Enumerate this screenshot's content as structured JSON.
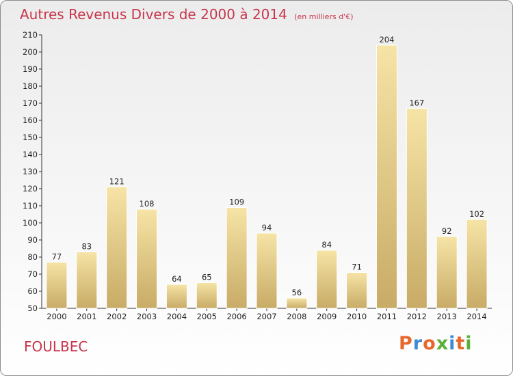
{
  "header": {
    "title": "Autres Revenus Divers de 2000 à 2014",
    "subtitle": "(en milliers d'€)"
  },
  "footer": {
    "place": "FOULBEC",
    "logo": "Proxiti"
  },
  "colors": {
    "title": "#c8344b",
    "bar_light": "#f4dfa0",
    "bar_dark": "#c9ac67",
    "logo_letters": [
      "#e8672a",
      "#3d8ad1",
      "#e8672a",
      "#58b038",
      "#3d8ad1",
      "#e8672a",
      "#58b038"
    ]
  },
  "chart_data": {
    "type": "bar",
    "title": "Autres Revenus Divers de 2000 à 2014",
    "subtitle": "(en milliers d'€)",
    "categories": [
      "2000",
      "2001",
      "2002",
      "2003",
      "2004",
      "2005",
      "2006",
      "2007",
      "2008",
      "2009",
      "2010",
      "2011",
      "2012",
      "2013",
      "2014"
    ],
    "values": [
      77,
      83,
      121,
      108,
      64,
      65,
      109,
      94,
      56,
      84,
      71,
      204,
      167,
      92,
      102
    ],
    "ylim": [
      50,
      210
    ],
    "yticks": [
      50,
      60,
      70,
      80,
      90,
      100,
      110,
      120,
      130,
      140,
      150,
      160,
      170,
      180,
      190,
      200,
      210
    ],
    "grid": false,
    "data_labels": true
  }
}
